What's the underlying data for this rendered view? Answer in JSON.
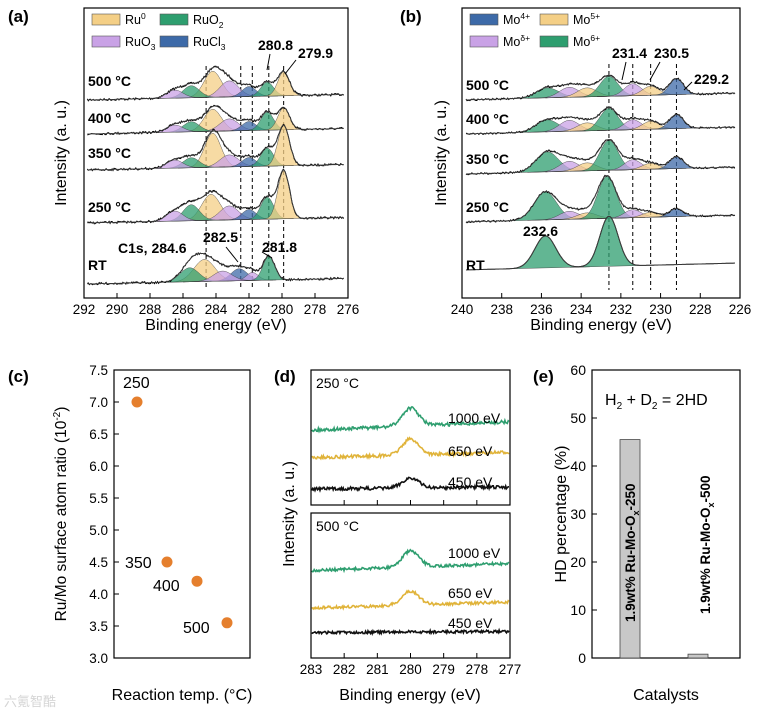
{
  "figure": {
    "panels": [
      {
        "letter": "(a)",
        "xlabel": "Binding energy (eV)",
        "ylabel": "Intensity (a. u.)",
        "legend": [
          {
            "label": "Ru",
            "sup": "0",
            "color": "#f4cf86"
          },
          {
            "label": "RuO",
            "sub": "2",
            "color": "#2e9e6f"
          },
          {
            "label": "RuO",
            "sub": "3",
            "color": "#c9a2e6"
          },
          {
            "label": "RuCl",
            "sub": "3",
            "color": "#3d6aa8"
          }
        ],
        "traces": [
          "500 °C",
          "400 °C",
          "350 °C",
          "250 °C",
          "RT"
        ],
        "annotations": [
          "280.8",
          "279.9",
          "C1s, 284.6",
          "282.5",
          "281.8"
        ]
      },
      {
        "letter": "(b)",
        "xlabel": "Binding energy (eV)",
        "ylabel": "Intensity (a. u.)",
        "legend": [
          {
            "label": "Mo",
            "sup": "4+",
            "color": "#3d6aa8"
          },
          {
            "label": "Mo",
            "sup": "5+",
            "color": "#f4cf86"
          },
          {
            "label": "Mo",
            "sup": "δ+",
            "color": "#c9a2e6"
          },
          {
            "label": "Mo",
            "sup": "6+",
            "color": "#2e9e6f"
          }
        ],
        "traces": [
          "500 °C",
          "400 °C",
          "350 °C",
          "250 °C",
          "RT"
        ],
        "annotations": [
          "231.4",
          "230.5",
          "229.2",
          "232.6"
        ]
      },
      {
        "letter": "(c)",
        "xlabel": "Reaction temp. (°C)",
        "ylabel": "Ru/Mo surface atom ratio (10",
        "ylabel_sup": "-2",
        "ylabel_end": ")"
      },
      {
        "letter": "(d)",
        "xlabel": "Binding energy (eV)",
        "ylabel": "Intensity (a. u.)",
        "subtitles": [
          "250 °C",
          "500 °C"
        ],
        "energies": [
          "1000 eV",
          "650 eV",
          "450 eV"
        ]
      },
      {
        "letter": "(e)",
        "xlabel": "Catalysts",
        "ylabel": "HD percentage (%)",
        "equation": {
          "h": "H",
          "s2": "2",
          "plus": " + D",
          "eq": " = 2HD"
        }
      }
    ],
    "watermark": "六氪智酷"
  },
  "chart_data": [
    {
      "type": "line",
      "title": "(a) Ru 3d XPS",
      "xlabel": "Binding energy (eV)",
      "ylabel": "Intensity (a. u.)",
      "xlim": [
        292,
        276
      ],
      "x_ticks": [
        292,
        290,
        288,
        286,
        284,
        282,
        280,
        278,
        276
      ],
      "series": [
        "500 °C",
        "400 °C",
        "350 °C",
        "250 °C",
        "RT"
      ],
      "reference_lines": [
        284.6,
        282.5,
        281.8,
        280.8,
        279.9
      ],
      "peak_labels": [
        {
          "text": "280.8",
          "x": 280.8
        },
        {
          "text": "279.9",
          "x": 279.9
        },
        {
          "text": "C1s, 284.6",
          "x": 284.6
        },
        {
          "text": "282.5",
          "x": 282.5
        },
        {
          "text": "281.8",
          "x": 281.8
        }
      ],
      "components": [
        "Ru0",
        "RuO2",
        "RuO3",
        "RuCl3"
      ]
    },
    {
      "type": "line",
      "title": "(b) Mo 3d XPS",
      "xlabel": "Binding energy (eV)",
      "ylabel": "Intensity (a. u.)",
      "xlim": [
        240,
        226
      ],
      "x_ticks": [
        240,
        238,
        236,
        234,
        232,
        230,
        228,
        226
      ],
      "series": [
        "500 °C",
        "400 °C",
        "350 °C",
        "250 °C",
        "RT"
      ],
      "reference_lines": [
        232.6,
        231.4,
        230.5,
        229.2
      ],
      "peak_labels": [
        {
          "text": "231.4",
          "x": 231.4
        },
        {
          "text": "230.5",
          "x": 230.5
        },
        {
          "text": "229.2",
          "x": 229.2
        },
        {
          "text": "232.6",
          "x": 232.6
        }
      ],
      "components": [
        "Mo4+",
        "Mo5+",
        "Modelta+",
        "Mo6+"
      ]
    },
    {
      "type": "scatter",
      "title": "(c)",
      "xlabel": "Reaction temp. (°C)",
      "ylabel": "Ru/Mo surface atom ratio (10^-2)",
      "ylim": [
        3.0,
        7.5
      ],
      "y_ticks": [
        3.0,
        3.5,
        4.0,
        4.5,
        5.0,
        5.5,
        6.0,
        6.5,
        7.0,
        7.5
      ],
      "x_axis_ticks_shown": false,
      "points": [
        {
          "label": "250",
          "x": 250,
          "y": 7.0
        },
        {
          "label": "350",
          "x": 350,
          "y": 4.5
        },
        {
          "label": "400",
          "x": 400,
          "y": 4.2
        },
        {
          "label": "500",
          "x": 500,
          "y": 3.55
        }
      ],
      "marker_color": "#e57f2d"
    },
    {
      "type": "line",
      "title": "(d)",
      "xlabel": "Binding energy (eV)",
      "ylabel": "Intensity (a. u.)",
      "xlim": [
        283,
        277
      ],
      "x_ticks": [
        283,
        282,
        281,
        280,
        279,
        278,
        277
      ],
      "subplots": [
        {
          "title": "250 °C",
          "series": [
            {
              "name": "1000 eV",
              "color": "#2e9e6f"
            },
            {
              "name": "650 eV",
              "color": "#e0b339"
            },
            {
              "name": "450 eV",
              "color": "#111111"
            }
          ]
        },
        {
          "title": "500 °C",
          "series": [
            {
              "name": "1000 eV",
              "color": "#2e9e6f"
            },
            {
              "name": "650 eV",
              "color": "#e0b339"
            },
            {
              "name": "450 eV",
              "color": "#111111"
            }
          ]
        }
      ],
      "peak_position": 280.0
    },
    {
      "type": "bar",
      "title": "(e) H2 + D2 = 2HD",
      "xlabel": "Catalysts",
      "ylabel": "HD percentage (%)",
      "ylim": [
        0,
        60
      ],
      "y_ticks": [
        0,
        10,
        20,
        30,
        40,
        50,
        60
      ],
      "categories": [
        "1.9wt% Ru-Mo-Ox-250",
        "1.9wt% Ru-Mo-Ox-500"
      ],
      "values": [
        45.5,
        0.8
      ],
      "bar_color": "#c8c8c8"
    }
  ]
}
